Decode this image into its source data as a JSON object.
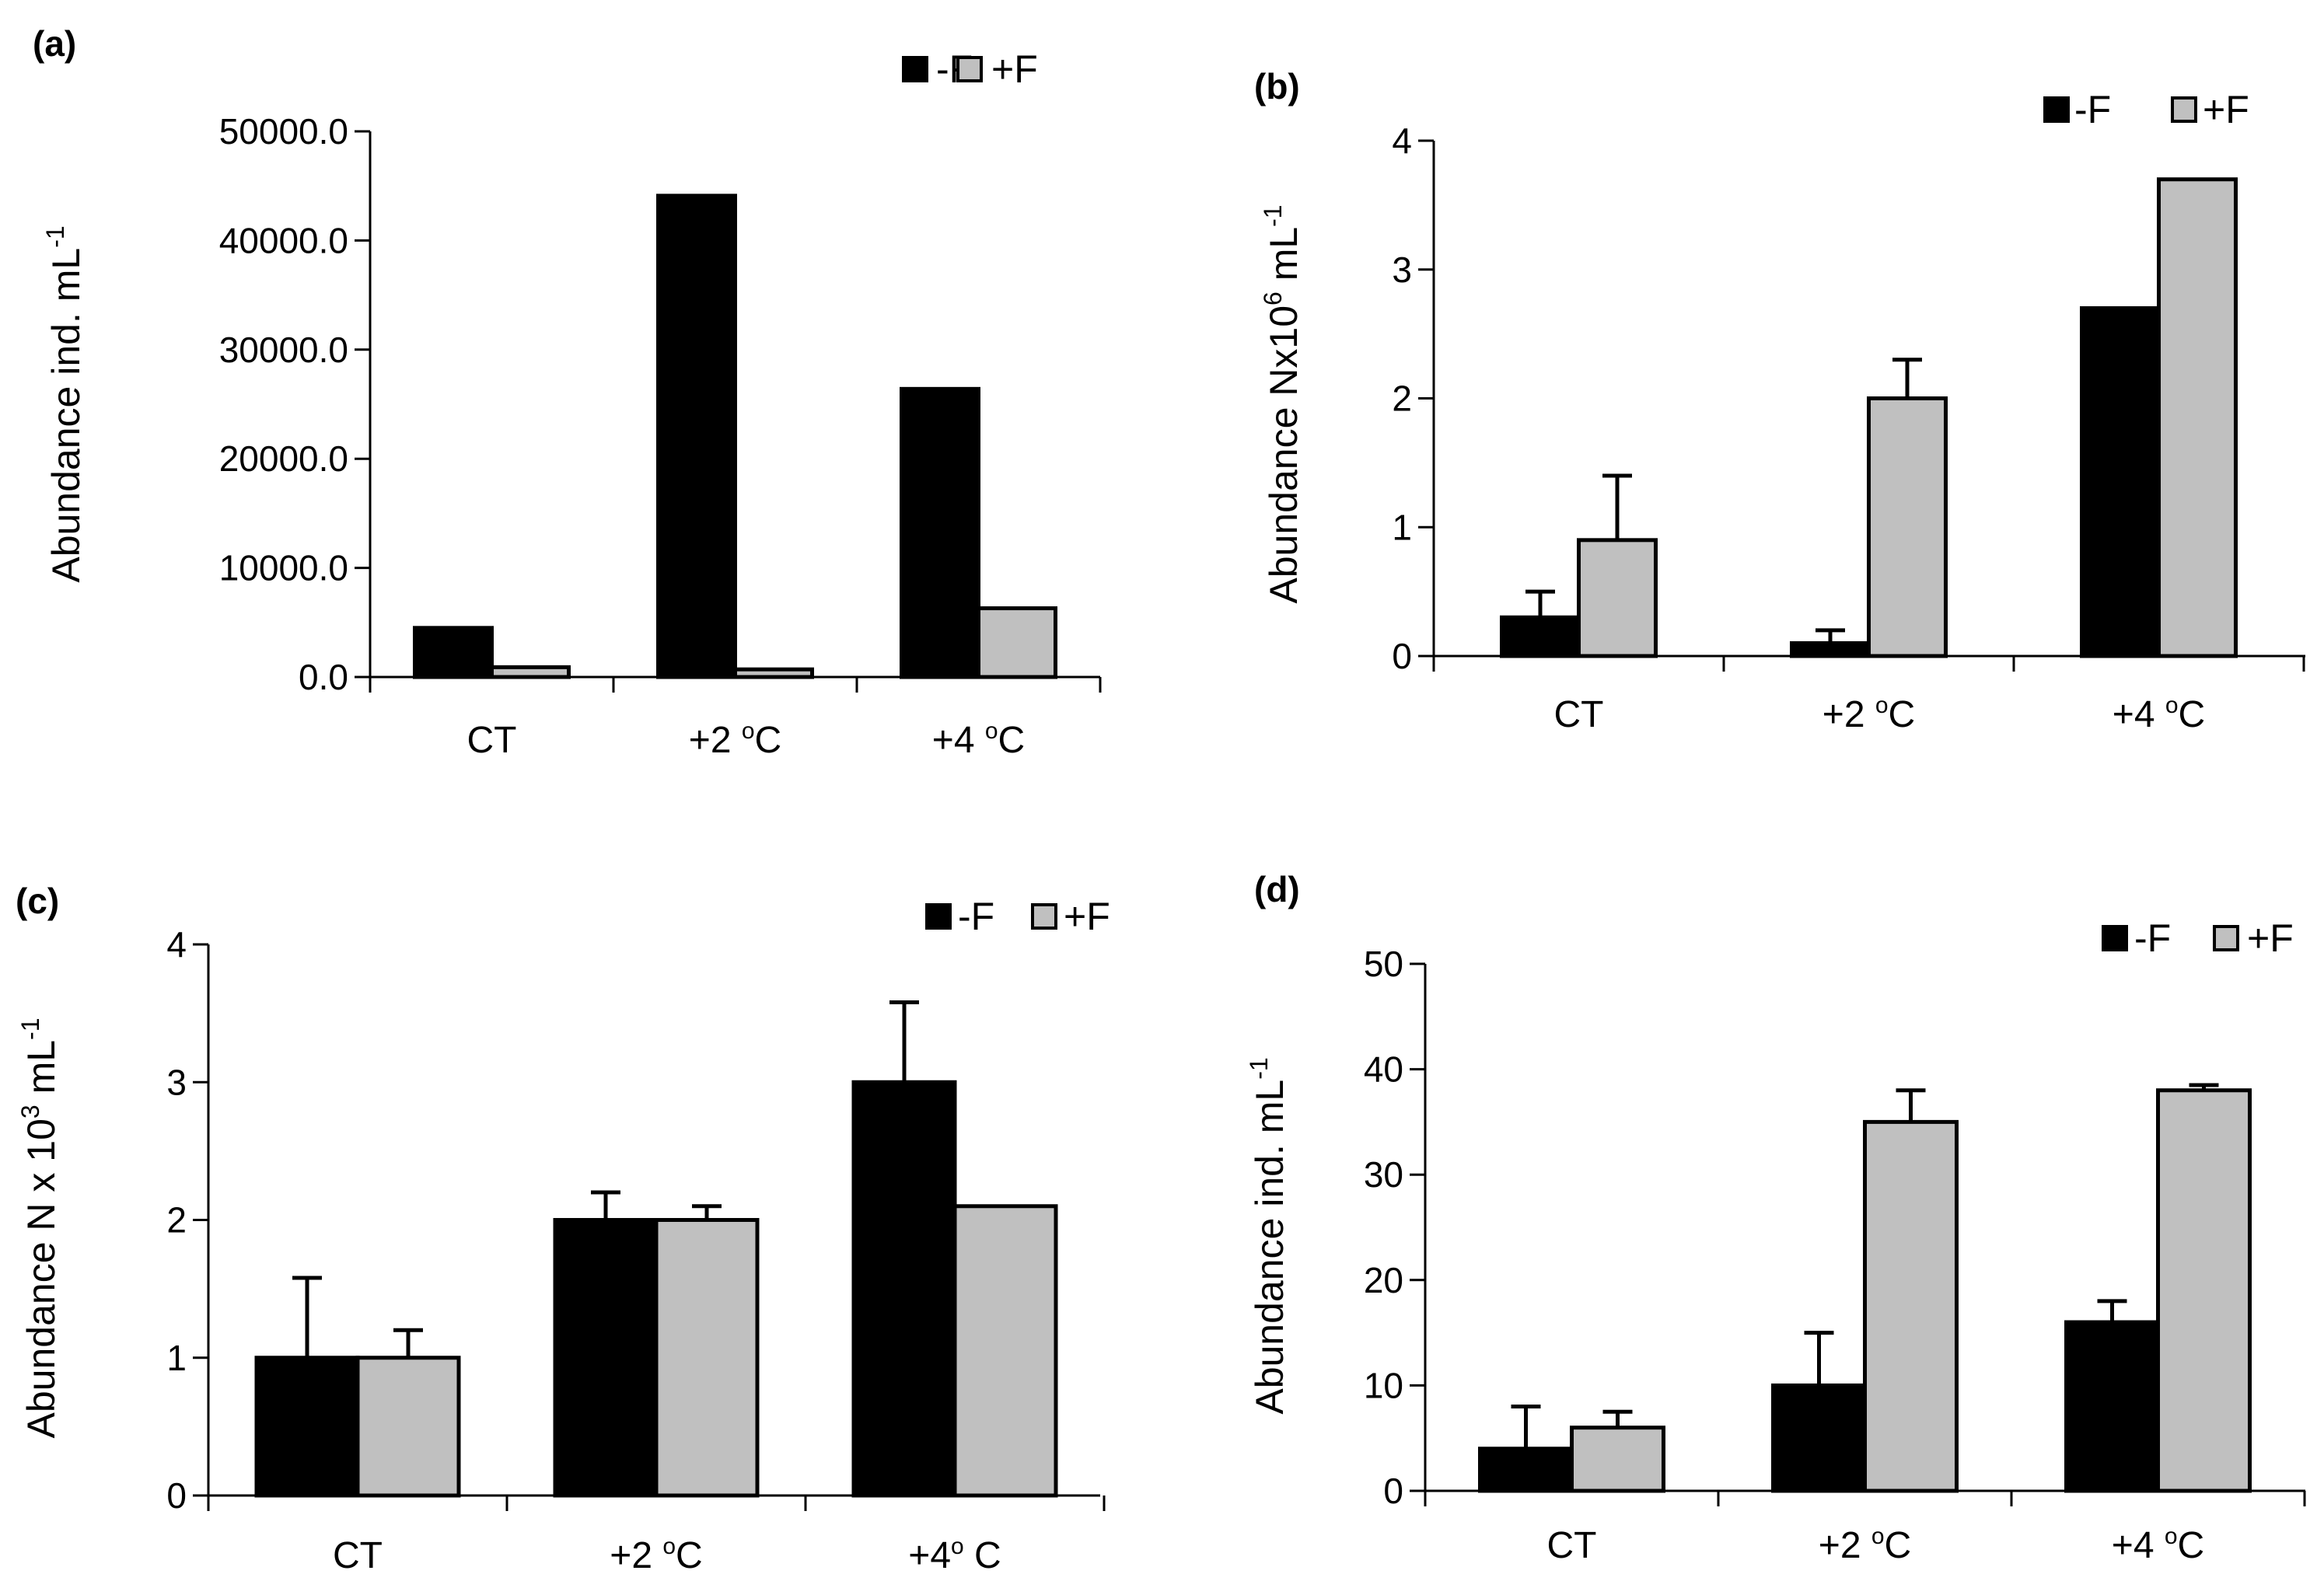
{
  "colors": {
    "minus_f": "#000000",
    "plus_f": "#c0c0c0",
    "axis": "#000000"
  },
  "chart_data": [
    {
      "panel": "(a)",
      "type": "bar",
      "ylabel": "Abundance ind. mL",
      "ylabel_sup": "-1",
      "ylim": [
        0,
        50000
      ],
      "yticks": [
        0,
        10000,
        20000,
        30000,
        40000,
        50000
      ],
      "ytick_labels": [
        "0.0",
        "10000.0",
        "20000.0",
        "30000.0",
        "40000.0",
        "50000.0"
      ],
      "categories": [
        {
          "base": "CT",
          "sup": "",
          "tail": ""
        },
        {
          "base": "+2 ",
          "sup": "o",
          "tail": "C"
        },
        {
          "base": "+4 ",
          "sup": "o",
          "tail": "C"
        }
      ],
      "legend": [
        "-F",
        "+F"
      ],
      "legend_position": "top-right",
      "series": [
        {
          "name": "-F",
          "values": [
            4500,
            44100,
            26400
          ],
          "errors": [
            0,
            0,
            0
          ]
        },
        {
          "name": "+F",
          "values": [
            900,
            700,
            6300
          ],
          "errors": [
            0,
            0,
            0
          ]
        }
      ]
    },
    {
      "panel": "(b)",
      "type": "bar",
      "ylabel": "Abundance Nx10",
      "ylabel_sup": "6",
      "ylabel_tail": " mL",
      "ylabel_tail_sup": "-1",
      "ylim": [
        0,
        4
      ],
      "yticks": [
        0,
        1,
        2,
        3,
        4
      ],
      "ytick_labels": [
        "0",
        "1",
        "2",
        "3",
        "4"
      ],
      "categories": [
        {
          "base": "CT",
          "sup": "",
          "tail": ""
        },
        {
          "base": "+2 ",
          "sup": "o",
          "tail": "C"
        },
        {
          "base": "+4 ",
          "sup": "o",
          "tail": "C"
        }
      ],
      "legend": [
        "-F",
        "+F"
      ],
      "legend_position": "top-right",
      "series": [
        {
          "name": "-F",
          "values": [
            0.3,
            0.1,
            2.7
          ],
          "errors": [
            0.2,
            0.1,
            0
          ]
        },
        {
          "name": "+F",
          "values": [
            0.9,
            2.0,
            3.7
          ],
          "errors": [
            0.5,
            0.3,
            0
          ]
        }
      ]
    },
    {
      "panel": "(c)",
      "type": "bar",
      "ylabel": "Abundance N x 10",
      "ylabel_sup": "3",
      "ylabel_tail": " mL",
      "ylabel_tail_sup": "-1",
      "ylim": [
        0,
        4
      ],
      "yticks": [
        0,
        1,
        2,
        3,
        4
      ],
      "ytick_labels": [
        "0",
        "1",
        "2",
        "3",
        "4"
      ],
      "categories": [
        {
          "base": "CT",
          "sup": "",
          "tail": ""
        },
        {
          "base": "+2 ",
          "sup": "o",
          "tail": "C"
        },
        {
          "base": "+4",
          "sup": "o",
          "tail": " C"
        }
      ],
      "legend": [
        "-F",
        "+F"
      ],
      "legend_position": "top-right",
      "series": [
        {
          "name": "-F",
          "values": [
            1.0,
            2.0,
            3.0
          ],
          "errors": [
            0.58,
            0.2,
            0.58
          ]
        },
        {
          "name": "+F",
          "values": [
            1.0,
            2.0,
            2.1
          ],
          "errors": [
            0.2,
            0.1,
            0
          ]
        }
      ]
    },
    {
      "panel": "(d)",
      "type": "bar",
      "ylabel": "Abundance ind. mL",
      "ylabel_sup": "-1",
      "ylim": [
        0,
        50
      ],
      "yticks": [
        0,
        10,
        20,
        30,
        40,
        50
      ],
      "ytick_labels": [
        "0",
        "10",
        "20",
        "30",
        "40",
        "50"
      ],
      "categories": [
        {
          "base": "CT",
          "sup": "",
          "tail": ""
        },
        {
          "base": "+2 ",
          "sup": "o",
          "tail": "C"
        },
        {
          "base": "+4 ",
          "sup": "o",
          "tail": "C"
        }
      ],
      "legend": [
        "-F",
        "+F"
      ],
      "legend_position": "top-right",
      "series": [
        {
          "name": "-F",
          "values": [
            4,
            10,
            16
          ],
          "errors": [
            4,
            5,
            2
          ]
        },
        {
          "name": "+F",
          "values": [
            6,
            35,
            38
          ],
          "errors": [
            1.5,
            3,
            0.5
          ]
        }
      ]
    }
  ]
}
